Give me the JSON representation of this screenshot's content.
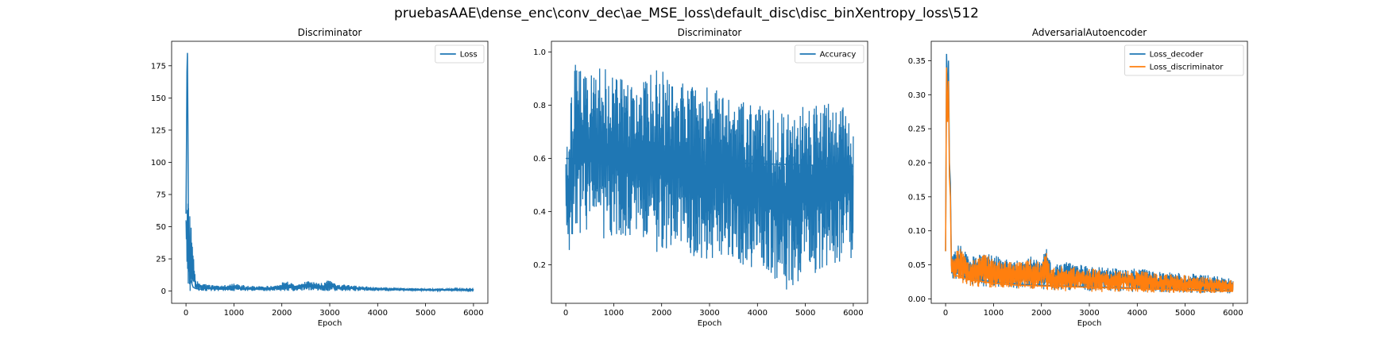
{
  "figure": {
    "suptitle": "pruebasAAE\\dense_enc\\conv_dec\\ae_MSE_loss\\default_disc\\disc_binXentropy_loss\\512"
  },
  "colors": {
    "blue": "#1f77b4",
    "orange": "#ff7f0e",
    "frame": "#000000"
  },
  "chart_data": [
    {
      "type": "line",
      "title": "Discriminator",
      "xlabel": "Epoch",
      "ylabel": "",
      "xlim": [
        -300,
        6300
      ],
      "ylim": [
        -9.5,
        194
      ],
      "xticks": [
        0,
        1000,
        2000,
        3000,
        4000,
        5000,
        6000
      ],
      "yticks": [
        0,
        25,
        50,
        75,
        100,
        125,
        150,
        175
      ],
      "legend_position": "top-right",
      "series": [
        {
          "name": "Loss",
          "color": "#1f77b4",
          "x": [
            0,
            10,
            20,
            30,
            40,
            50,
            60,
            80,
            100,
            150,
            200,
            300,
            400,
            500,
            700,
            900,
            1000,
            1200,
            1500,
            1800,
            2000,
            2100,
            2200,
            2400,
            2500,
            2600,
            2800,
            3000,
            3200,
            3500,
            4000,
            4500,
            5000,
            5500,
            6000
          ],
          "y": [
            60,
            112,
            170,
            185,
            130,
            52,
            28,
            15,
            8,
            3,
            2,
            1.5,
            2,
            2,
            1.5,
            1.5,
            3,
            1.5,
            2,
            1.5,
            3.5,
            5,
            3,
            4.5,
            5,
            3.5,
            3,
            4,
            2.5,
            2,
            1.5,
            1.2,
            1,
            0.8,
            0.6
          ],
          "envelope": {
            "x": [
              0,
              200,
              300,
              500,
              700,
              1000,
              1300,
              1500,
              1800,
              2000,
              2100,
              2300,
              2400,
              2600,
              2800,
              3000,
              3100,
              3300,
              3600,
              4000,
              4500,
              5000,
              5500,
              6000
            ],
            "upper": [
              100,
              8,
              7,
              5,
              4,
              6,
              4,
              4,
              4,
              7,
              8,
              5,
              7,
              8,
              6,
              9,
              6,
              5,
              4,
              3,
              2.5,
              2,
              2,
              1.6
            ],
            "lower": [
              0,
              0,
              0,
              0,
              0,
              0,
              0,
              0,
              0,
              0,
              0,
              0,
              0,
              0,
              0,
              0,
              0,
              0,
              0,
              0,
              0,
              0,
              0,
              0
            ]
          }
        }
      ]
    },
    {
      "type": "line",
      "title": "Discriminator",
      "xlabel": "Epoch",
      "ylabel": "",
      "xlim": [
        -300,
        6300
      ],
      "ylim": [
        0.0555,
        1.04
      ],
      "xticks": [
        0,
        1000,
        2000,
        3000,
        4000,
        5000,
        6000
      ],
      "yticks": [
        0.2,
        0.4,
        0.6,
        0.8,
        1.0
      ],
      "legend_position": "top-right",
      "series": [
        {
          "name": "Accuracy",
          "color": "#1f77b4",
          "x": [
            0,
            6000
          ],
          "y": [
            0.6,
            0.57
          ],
          "envelope": {
            "x": [
              0,
              100,
              200,
              300,
              500,
              700,
              1000,
              1200,
              1500,
              1800,
              2000,
              2200,
              2500,
              2800,
              3000,
              3300,
              3600,
              4000,
              4300,
              4600,
              4800,
              5000,
              5300,
              5600,
              6000
            ],
            "upper": [
              0.6,
              0.8,
              0.99,
              0.97,
              0.92,
              0.95,
              0.93,
              0.9,
              0.88,
              0.92,
              0.95,
              0.9,
              0.88,
              0.86,
              0.87,
              0.85,
              0.8,
              0.85,
              0.78,
              0.8,
              0.76,
              0.82,
              0.8,
              0.81,
              0.79
            ],
            "lower": [
              0.35,
              0.22,
              0.35,
              0.28,
              0.33,
              0.3,
              0.28,
              0.3,
              0.32,
              0.27,
              0.2,
              0.27,
              0.25,
              0.2,
              0.22,
              0.23,
              0.2,
              0.18,
              0.15,
              0.1,
              0.12,
              0.14,
              0.18,
              0.2,
              0.22
            ]
          }
        }
      ]
    },
    {
      "type": "line",
      "title": "AdversarialAutoencoder",
      "xlabel": "Epoch",
      "ylabel": "",
      "xlim": [
        -300,
        6300
      ],
      "ylim": [
        -0.0065,
        0.3785
      ],
      "xticks": [
        0,
        1000,
        2000,
        3000,
        4000,
        5000,
        6000
      ],
      "yticks": [
        0.0,
        0.05,
        0.1,
        0.15,
        0.2,
        0.25,
        0.3,
        0.35
      ],
      "legend_position": "top-right",
      "series": [
        {
          "name": "Loss_decoder",
          "color": "#1f77b4",
          "x": [
            0,
            20,
            40,
            60,
            80,
            100,
            120,
            150,
            200,
            300,
            500,
            800,
            1000,
            1500,
            2000,
            2500,
            3000,
            3500,
            4000,
            4500,
            5000,
            5500,
            6000
          ],
          "y": [
            0.07,
            0.36,
            0.29,
            0.35,
            0.2,
            0.17,
            0.06,
            0.045,
            0.04,
            0.035,
            0.03,
            0.027,
            0.025,
            0.022,
            0.02,
            0.019,
            0.018,
            0.017,
            0.016,
            0.015,
            0.014,
            0.013,
            0.012
          ],
          "envelope": {
            "x": [
              120,
              300,
              500,
              800,
              1000,
              1300,
              1600,
              1800,
              2000,
              2100,
              2200,
              2500,
              2800,
              3000,
              3500,
              4000,
              4500,
              5000,
              5500,
              6000
            ],
            "upper": [
              0.07,
              0.085,
              0.06,
              0.07,
              0.065,
              0.06,
              0.058,
              0.065,
              0.06,
              0.075,
              0.05,
              0.055,
              0.05,
              0.05,
              0.045,
              0.045,
              0.04,
              0.038,
              0.035,
              0.03
            ],
            "lower": [
              0.03,
              0.025,
              0.02,
              0.018,
              0.017,
              0.016,
              0.015,
              0.014,
              0.014,
              0.013,
              0.013,
              0.012,
              0.012,
              0.011,
              0.011,
              0.01,
              0.01,
              0.009,
              0.009,
              0.008
            ]
          }
        },
        {
          "name": "Loss_discriminator",
          "color": "#ff7f0e",
          "x": [
            0,
            20,
            40,
            60,
            80,
            100,
            120,
            150,
            200,
            300,
            500,
            800,
            1000,
            1500,
            2000,
            2500,
            3000,
            3500,
            4000,
            4500,
            5000,
            5500,
            6000
          ],
          "y": [
            0.07,
            0.34,
            0.26,
            0.32,
            0.18,
            0.15,
            0.05,
            0.04,
            0.035,
            0.032,
            0.028,
            0.025,
            0.023,
            0.02,
            0.019,
            0.018,
            0.017,
            0.016,
            0.015,
            0.014,
            0.013,
            0.012,
            0.011
          ],
          "envelope": {
            "x": [
              120,
              300,
              500,
              800,
              1000,
              1300,
              1600,
              1800,
              2000,
              2100,
              2200,
              2500,
              2800,
              3000,
              3500,
              4000,
              4500,
              5000,
              5500,
              6000
            ],
            "upper": [
              0.065,
              0.075,
              0.055,
              0.065,
              0.06,
              0.055,
              0.054,
              0.06,
              0.055,
              0.07,
              0.045,
              0.05,
              0.046,
              0.046,
              0.042,
              0.042,
              0.037,
              0.035,
              0.032,
              0.028
            ],
            "lower": [
              0.028,
              0.023,
              0.019,
              0.017,
              0.016,
              0.015,
              0.014,
              0.013,
              0.013,
              0.012,
              0.012,
              0.011,
              0.011,
              0.01,
              0.01,
              0.009,
              0.009,
              0.008,
              0.008,
              0.008
            ]
          }
        }
      ]
    }
  ]
}
